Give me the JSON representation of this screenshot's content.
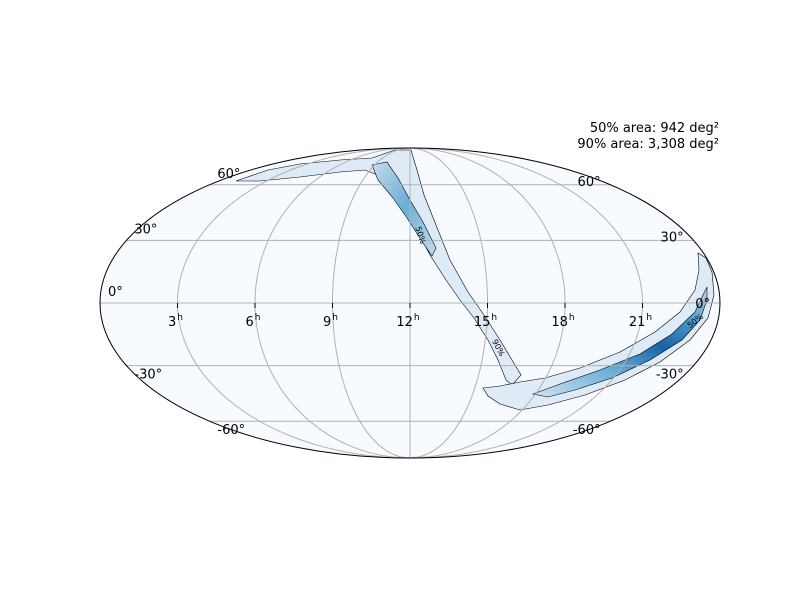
{
  "map": {
    "projection": "mollweide",
    "graticule": true,
    "colormap": "blues",
    "area_labels": {
      "line50": "50% area: 942 deg²",
      "line90": "90% area: 3,308 deg²"
    },
    "contour_labels": {
      "north50": "50%",
      "north90": "90%",
      "south50": "50%"
    },
    "ra_ticks": [
      {
        "hour": 21,
        "label": "21",
        "sup": "h"
      },
      {
        "hour": 18,
        "label": "18",
        "sup": "h"
      },
      {
        "hour": 15,
        "label": "15",
        "sup": "h"
      },
      {
        "hour": 12,
        "label": "12",
        "sup": "h"
      },
      {
        "hour": 9,
        "label": "9",
        "sup": "h"
      },
      {
        "hour": 6,
        "label": "6",
        "sup": "h"
      },
      {
        "hour": 3,
        "label": "3",
        "sup": "h"
      }
    ],
    "dec_ticks": [
      {
        "dec": 60,
        "label": "60°"
      },
      {
        "dec": 30,
        "label": "30°"
      },
      {
        "dec": 0,
        "label": "0°"
      },
      {
        "dec": -30,
        "label": "-30°"
      },
      {
        "dec": -60,
        "label": "-60°"
      }
    ]
  }
}
